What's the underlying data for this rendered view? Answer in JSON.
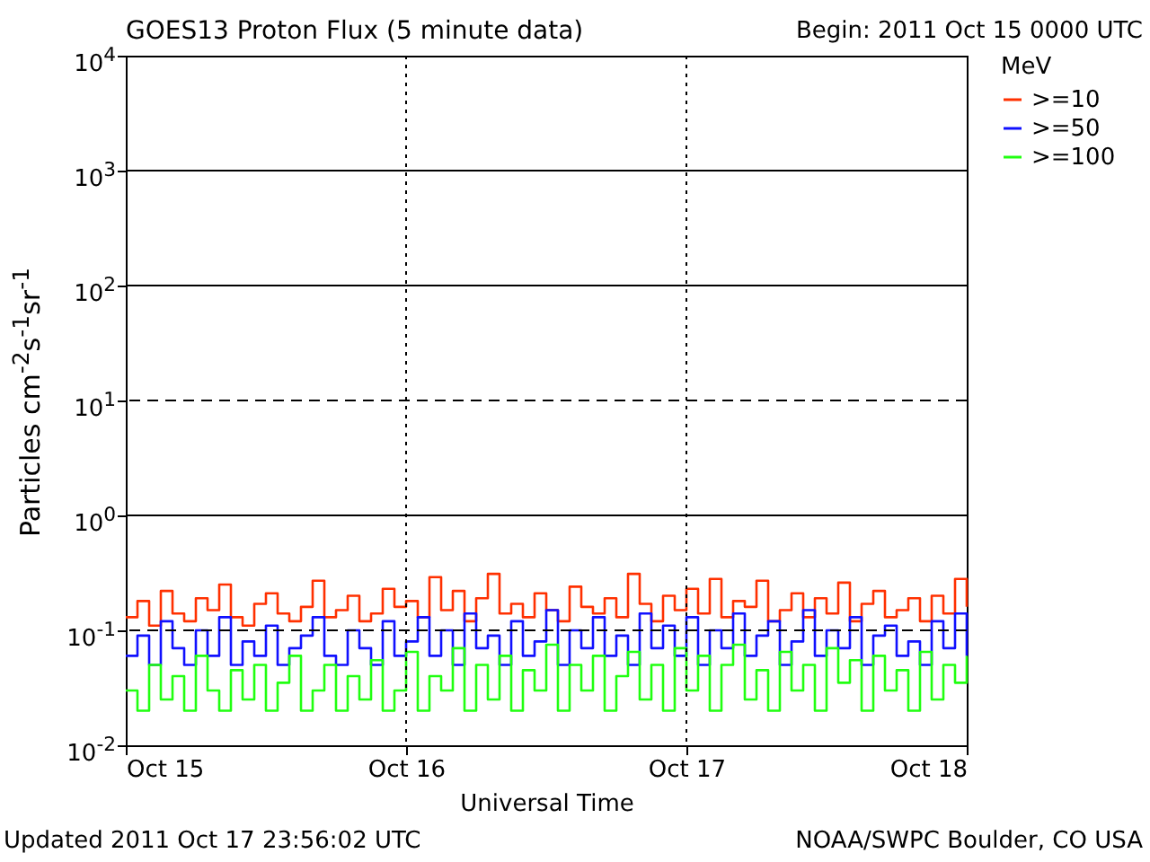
{
  "chart_data": {
    "type": "step",
    "title": "GOES13 Proton Flux (5 minute data)",
    "xlabel": "Universal Time",
    "ylabel": "Particles cm$^{-2}$s$^{-1}$sr$^{-1}$",
    "legend_title": "MeV",
    "legend": "right",
    "log": "y",
    "annotations": [
      "Begin: 2011 Oct 15 0000 UTC",
      "Updated 2011 Oct 17 23:56:02 UTC",
      "NOAA/SWPC Boulder, CO USA"
    ],
    "x": [
      "2011-10-15T00:00",
      "2011-10-15T01:00",
      "2011-10-15T02:00",
      "2011-10-15T03:00",
      "2011-10-15T04:00",
      "2011-10-15T05:00",
      "2011-10-15T06:00",
      "2011-10-15T07:00",
      "2011-10-15T08:00",
      "2011-10-15T09:00",
      "2011-10-15T10:00",
      "2011-10-15T11:00",
      "2011-10-15T12:00",
      "2011-10-15T13:00",
      "2011-10-15T14:00",
      "2011-10-15T15:00",
      "2011-10-15T16:00",
      "2011-10-15T17:00",
      "2011-10-15T18:00",
      "2011-10-15T19:00",
      "2011-10-15T20:00",
      "2011-10-15T21:00",
      "2011-10-15T22:00",
      "2011-10-15T23:00",
      "2011-10-16T00:00",
      "2011-10-16T01:00",
      "2011-10-16T02:00",
      "2011-10-16T03:00",
      "2011-10-16T04:00",
      "2011-10-16T05:00",
      "2011-10-16T06:00",
      "2011-10-16T07:00",
      "2011-10-16T08:00",
      "2011-10-16T09:00",
      "2011-10-16T10:00",
      "2011-10-16T11:00",
      "2011-10-16T12:00",
      "2011-10-16T13:00",
      "2011-10-16T14:00",
      "2011-10-16T15:00",
      "2011-10-16T16:00",
      "2011-10-16T17:00",
      "2011-10-16T18:00",
      "2011-10-16T19:00",
      "2011-10-16T20:00",
      "2011-10-16T21:00",
      "2011-10-16T22:00",
      "2011-10-16T23:00",
      "2011-10-17T00:00",
      "2011-10-17T01:00",
      "2011-10-17T02:00",
      "2011-10-17T03:00",
      "2011-10-17T04:00",
      "2011-10-17T05:00",
      "2011-10-17T06:00",
      "2011-10-17T07:00",
      "2011-10-17T08:00",
      "2011-10-17T09:00",
      "2011-10-17T10:00",
      "2011-10-17T11:00",
      "2011-10-17T12:00",
      "2011-10-17T13:00",
      "2011-10-17T14:00",
      "2011-10-17T15:00",
      "2011-10-17T16:00",
      "2011-10-17T17:00",
      "2011-10-17T18:00",
      "2011-10-17T19:00",
      "2011-10-17T20:00",
      "2011-10-17T21:00",
      "2011-10-17T22:00",
      "2011-10-17T23:00",
      "2011-10-18T00:00"
    ],
    "series": [
      {
        "name": ">=10",
        "color": "#ff3000",
        "values": [
          0.13,
          0.18,
          0.11,
          0.22,
          0.14,
          0.12,
          0.19,
          0.15,
          0.25,
          0.13,
          0.11,
          0.17,
          0.21,
          0.14,
          0.12,
          0.16,
          0.27,
          0.13,
          0.15,
          0.2,
          0.12,
          0.14,
          0.23,
          0.16,
          0.18,
          0.13,
          0.29,
          0.15,
          0.22,
          0.12,
          0.19,
          0.31,
          0.14,
          0.17,
          0.13,
          0.21,
          0.15,
          0.12,
          0.24,
          0.16,
          0.14,
          0.19,
          0.13,
          0.31,
          0.17,
          0.12,
          0.2,
          0.15,
          0.23,
          0.14,
          0.28,
          0.13,
          0.18,
          0.16,
          0.27,
          0.12,
          0.15,
          0.21,
          0.13,
          0.19,
          0.14,
          0.26,
          0.12,
          0.17,
          0.22,
          0.13,
          0.15,
          0.19,
          0.12,
          0.2,
          0.14,
          0.28,
          0.16
        ]
      },
      {
        "name": ">=50",
        "color": "#1010ff",
        "values": [
          0.06,
          0.09,
          0.05,
          0.12,
          0.07,
          0.05,
          0.1,
          0.06,
          0.13,
          0.05,
          0.08,
          0.06,
          0.11,
          0.05,
          0.07,
          0.09,
          0.13,
          0.06,
          0.05,
          0.1,
          0.07,
          0.05,
          0.12,
          0.06,
          0.08,
          0.13,
          0.06,
          0.1,
          0.05,
          0.14,
          0.07,
          0.09,
          0.05,
          0.12,
          0.06,
          0.08,
          0.15,
          0.05,
          0.1,
          0.07,
          0.13,
          0.06,
          0.09,
          0.05,
          0.14,
          0.07,
          0.11,
          0.06,
          0.13,
          0.05,
          0.1,
          0.07,
          0.14,
          0.06,
          0.09,
          0.12,
          0.05,
          0.08,
          0.15,
          0.06,
          0.1,
          0.07,
          0.13,
          0.05,
          0.09,
          0.11,
          0.06,
          0.08,
          0.05,
          0.12,
          0.07,
          0.14,
          0.06
        ]
      },
      {
        "name": ">=100",
        "color": "#20ff10",
        "values": [
          0.03,
          0.02,
          0.05,
          0.025,
          0.04,
          0.02,
          0.06,
          0.03,
          0.02,
          0.045,
          0.025,
          0.05,
          0.02,
          0.035,
          0.06,
          0.02,
          0.03,
          0.05,
          0.02,
          0.04,
          0.025,
          0.055,
          0.02,
          0.03,
          0.065,
          0.02,
          0.04,
          0.03,
          0.07,
          0.02,
          0.05,
          0.025,
          0.06,
          0.02,
          0.045,
          0.03,
          0.075,
          0.02,
          0.05,
          0.03,
          0.06,
          0.02,
          0.04,
          0.065,
          0.025,
          0.05,
          0.02,
          0.07,
          0.03,
          0.06,
          0.02,
          0.05,
          0.075,
          0.025,
          0.045,
          0.02,
          0.065,
          0.03,
          0.05,
          0.02,
          0.07,
          0.035,
          0.055,
          0.02,
          0.06,
          0.03,
          0.045,
          0.02,
          0.065,
          0.025,
          0.05,
          0.035,
          0.06
        ]
      }
    ],
    "xlim": [
      "2011-10-15",
      "2011-10-18"
    ],
    "xticks": [
      {
        "value": "2011-10-15",
        "label": "Oct 15"
      },
      {
        "value": "2011-10-16",
        "label": "Oct 16"
      },
      {
        "value": "2011-10-17",
        "label": "Oct 17"
      },
      {
        "value": "2011-10-18",
        "label": "Oct 18"
      }
    ],
    "ylim": [
      0.01,
      10000
    ],
    "yticks": [
      {
        "value": 0.01,
        "label": "10$^{-2}$"
      },
      {
        "value": 0.1,
        "label": "10$^{-1}$"
      },
      {
        "value": 1,
        "label": "10$^{0}$"
      },
      {
        "value": 10,
        "label": "10$^{1}$"
      },
      {
        "value": 100,
        "label": "10$^{2}$"
      },
      {
        "value": 1000,
        "label": "10$^{3}$"
      },
      {
        "value": 10000,
        "label": "10$^{4}$"
      }
    ],
    "ref_lines": [
      {
        "axis": "y",
        "value": 1000,
        "color": "#000000",
        "line_style": "solid"
      },
      {
        "axis": "y",
        "value": 100,
        "color": "#000000",
        "line_style": "solid"
      },
      {
        "axis": "y",
        "value": 10,
        "color": "#000000",
        "line_style": "dashed"
      },
      {
        "axis": "y",
        "value": 1,
        "color": "#000000",
        "line_style": "solid"
      },
      {
        "axis": "y",
        "value": 0.1,
        "color": "#000000",
        "line_style": "dashed"
      },
      {
        "axis": "x",
        "value": "2011-10-16",
        "color": "#000000",
        "line_style": "dotted"
      },
      {
        "axis": "x",
        "value": "2011-10-17",
        "color": "#000000",
        "line_style": "dotted"
      }
    ]
  }
}
